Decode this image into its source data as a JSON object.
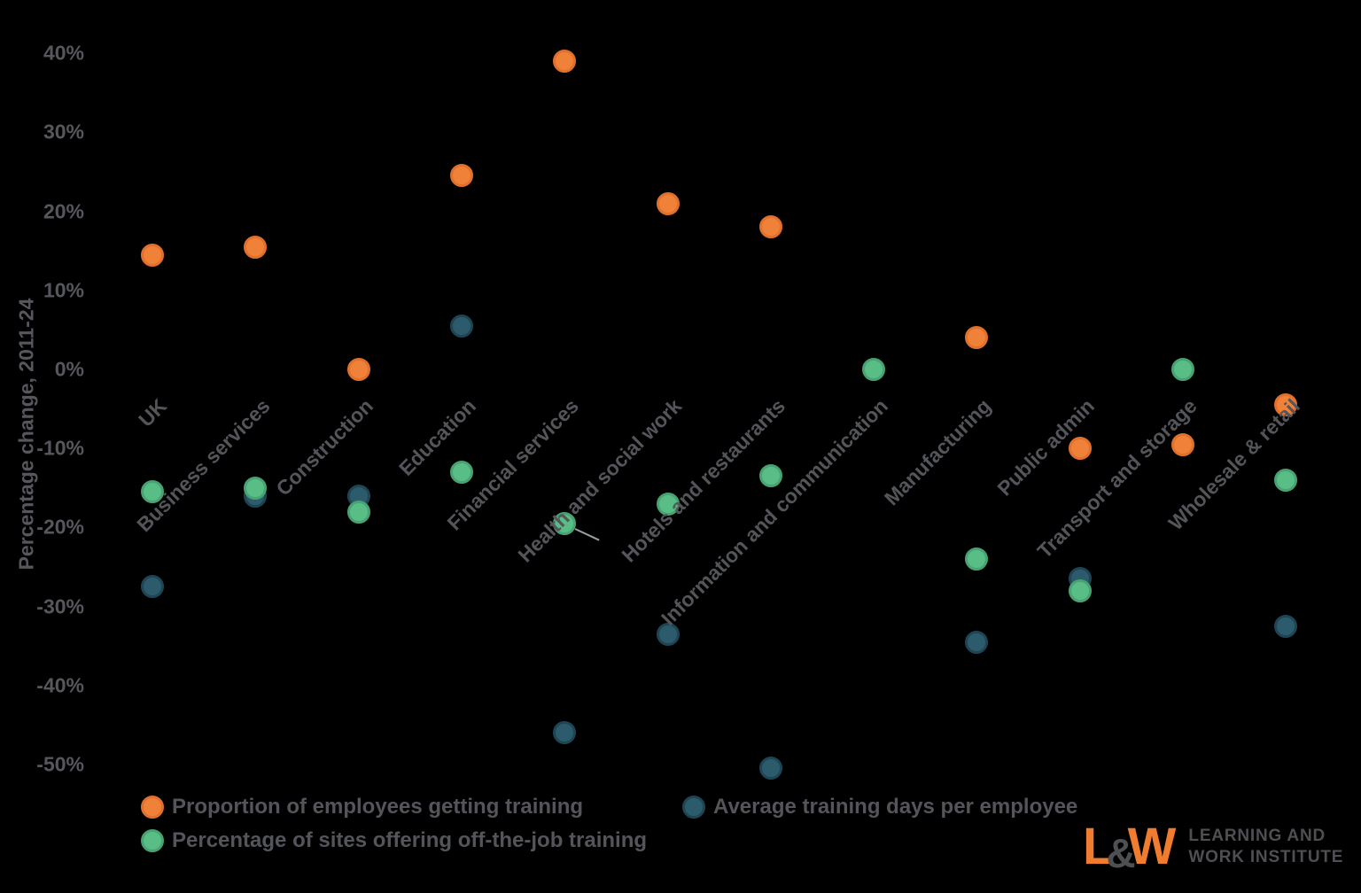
{
  "chart_data": {
    "type": "scatter",
    "title": "",
    "ylabel": "Percentage change, 2011-24",
    "y_ticks": [
      40,
      30,
      20,
      10,
      0,
      -10,
      -20,
      -30,
      -40,
      -50
    ],
    "y_tick_suffix": "%",
    "ylim": [
      -55,
      45
    ],
    "grid": false,
    "legend_position": "bottom",
    "categories": [
      "UK",
      "Business services",
      "Construction",
      "Education",
      "Financial services",
      "Health and social work",
      "Hotels and restaurants",
      "Information and communication",
      "Manufacturing",
      "Public admin",
      "Transport and storage",
      "Wholesale & retail"
    ],
    "series": [
      {
        "name": "Proportion of employees getting training",
        "color": "#f08139",
        "border_color": "#e0702b",
        "values": [
          14.5,
          15.5,
          0,
          24.5,
          39,
          21,
          18,
          null,
          4,
          -10,
          -9.5,
          -4.5
        ]
      },
      {
        "name": "Average training days per employee",
        "color": "#2c5c6c",
        "border_color": "#1f4555",
        "values": [
          -27.5,
          -16,
          -16,
          5.5,
          -46,
          -33.5,
          -50.5,
          null,
          -34.5,
          -26.5,
          null,
          -32.5
        ]
      },
      {
        "name": "Percentage of sites offering off-the-job training",
        "color": "#59bd86",
        "border_color": "#48a272",
        "values": [
          -15.5,
          -15,
          -18,
          -13,
          -19.5,
          -17,
          -13.5,
          0,
          -24,
          -28,
          0,
          -14
        ]
      }
    ]
  },
  "logo": {
    "mark_l": "L",
    "mark_amp": "&",
    "mark_w": "W",
    "line1": "LEARNING AND",
    "line2": "WORK INSTITUTE"
  }
}
